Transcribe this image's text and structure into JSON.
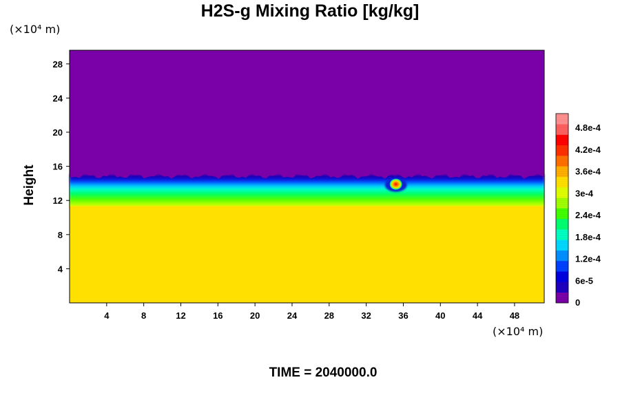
{
  "chart_data": {
    "type": "heatmap",
    "title": "H2S-g Mixing Ratio [kg/kg]",
    "ylabel": "Height",
    "x_unit_label": "(×10⁴ m)",
    "y_unit_label": "(×10⁴ m)",
    "footer": "TIME = 2040000.0",
    "xlim": [
      0,
      51.2
    ],
    "ylim": [
      0,
      29.6
    ],
    "x_ticks": [
      "4",
      "8",
      "12",
      "16",
      "20",
      "24",
      "28",
      "32",
      "36",
      "40",
      "44",
      "48"
    ],
    "y_ticks": [
      "4",
      "8",
      "12",
      "16",
      "20",
      "24",
      "28"
    ],
    "x_tick_values": [
      4,
      8,
      12,
      16,
      20,
      24,
      28,
      32,
      36,
      40,
      44,
      48
    ],
    "y_tick_values": [
      4,
      8,
      12,
      16,
      20,
      24,
      28
    ],
    "colorbar": {
      "min": 0,
      "max": 0.00052,
      "labels": [
        "0",
        "6e-5",
        "1.2e-4",
        "1.8e-4",
        "2.4e-4",
        "3e-4",
        "3.6e-4",
        "4.2e-4",
        "4.8e-4"
      ],
      "label_values": [
        0,
        6e-05,
        0.00012,
        0.00018,
        0.00024,
        0.0003,
        0.00036,
        0.00042,
        0.00048
      ],
      "colors": [
        "#7a00a8",
        "#2000c0",
        "#0000e0",
        "#0040ff",
        "#0090ff",
        "#00d8ff",
        "#00ffc0",
        "#00ff70",
        "#40ff00",
        "#a0ff00",
        "#e0ff00",
        "#ffe000",
        "#ffb000",
        "#ff7000",
        "#ff3000",
        "#ff0000",
        "#ff6060",
        "#ff9090"
      ]
    },
    "regions": [
      {
        "name": "upper",
        "y_range": [
          14.8,
          29.6
        ],
        "value": 0
      },
      {
        "name": "lower",
        "y_range": [
          0,
          11.5
        ],
        "value": 0.00034
      },
      {
        "name": "interface",
        "y_range": [
          11.5,
          14.8
        ],
        "value_range": [
          0,
          0.0003
        ]
      }
    ],
    "hotspot": {
      "x": 35.2,
      "y": 13.9,
      "value": 0.0005
    }
  }
}
